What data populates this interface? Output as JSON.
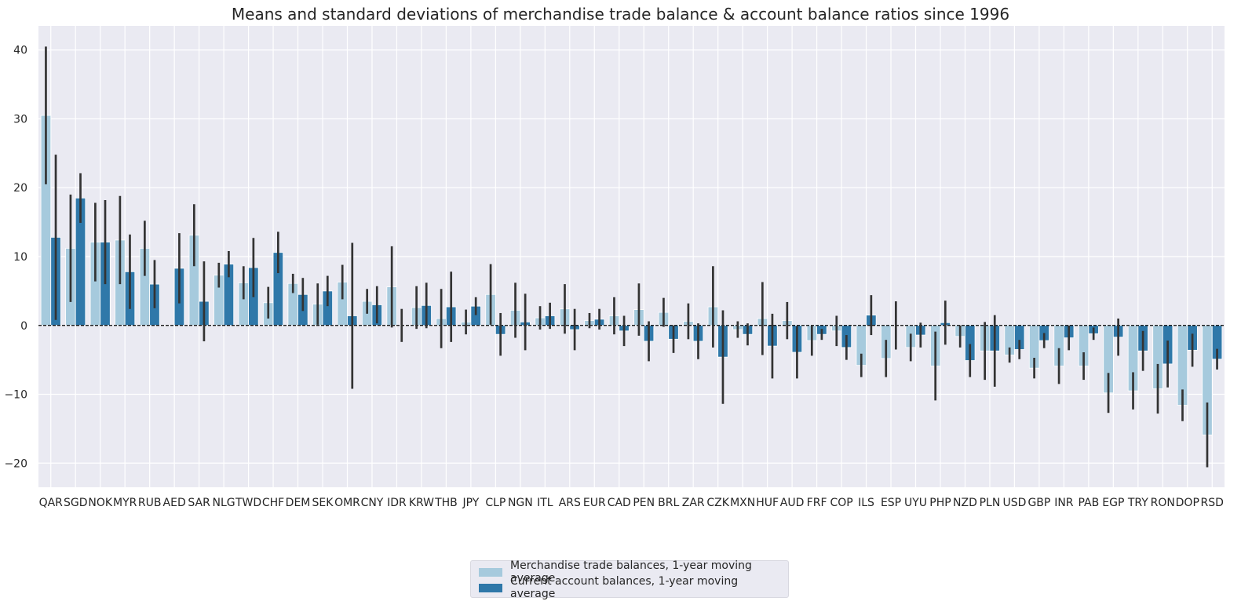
{
  "chart_data": {
    "type": "bar",
    "title": "Means and standard deviations of merchandise trade balance & account balance ratios since 1996",
    "xlabel": "",
    "ylabel": "",
    "ylim": [
      -23.5,
      43.5
    ],
    "yticks": [
      -20,
      -10,
      0,
      10,
      20,
      30,
      40
    ],
    "grid": true,
    "reference_line": 0,
    "legend_position": "bottom-center",
    "colors": {
      "background": "#eaeaf2",
      "grid": "#ffffff",
      "series_1": "#a6cadd",
      "series_2": "#2f78a9",
      "error_bar": "#333333"
    },
    "categories": [
      "QAR",
      "SGD",
      "NOK",
      "MYR",
      "RUB",
      "AED",
      "SAR",
      "NLG",
      "TWD",
      "CHF",
      "DEM",
      "SEK",
      "OMR",
      "CNY",
      "IDR",
      "KRW",
      "THB",
      "JPY",
      "CLP",
      "NGN",
      "ITL",
      "ARS",
      "EUR",
      "CAD",
      "PEN",
      "BRL",
      "ZAR",
      "CZK",
      "MXN",
      "HUF",
      "AUD",
      "FRF",
      "COP",
      "ILS",
      "ESP",
      "UYU",
      "PHP",
      "NZD",
      "PLN",
      "USD",
      "GBP",
      "INR",
      "PAB",
      "EGP",
      "TRY",
      "RON",
      "DOP",
      "RSD"
    ],
    "series": [
      {
        "name": "Merchandise trade balances, 1-year moving average",
        "values": [
          30.5,
          11.2,
          12.1,
          12.4,
          11.2,
          0,
          13.1,
          7.3,
          6.2,
          3.3,
          6.1,
          3.1,
          6.3,
          3.5,
          5.6,
          2.6,
          1.0,
          0.5,
          4.5,
          2.2,
          1.1,
          2.4,
          0.7,
          1.4,
          2.3,
          1.9,
          0.6,
          2.7,
          -0.6,
          1.0,
          0.7,
          -2.2,
          -0.8,
          -5.8,
          -4.8,
          -3.2,
          -5.9,
          -1.6,
          -3.7,
          -4.3,
          -6.2,
          -5.9,
          -5.9,
          -9.8,
          -9.5,
          -9.2,
          -11.6,
          -15.9
        ],
        "errors": [
          10.0,
          7.8,
          5.7,
          6.4,
          4.0,
          0,
          4.5,
          1.8,
          2.4,
          2.3,
          1.4,
          3.0,
          2.5,
          1.8,
          5.9,
          3.1,
          4.3,
          1.8,
          4.4,
          4.0,
          1.7,
          3.6,
          1.1,
          2.7,
          3.8,
          2.1,
          2.6,
          5.9,
          1.2,
          5.3,
          2.7,
          2.2,
          2.2,
          1.7,
          2.7,
          2.0,
          5.0,
          1.6,
          4.2,
          1.1,
          1.5,
          2.6,
          2.0,
          2.9,
          2.7,
          3.6,
          2.3,
          4.7
        ]
      },
      {
        "name": "Current account balances, 1-year moving average",
        "values": [
          12.8,
          18.5,
          12.1,
          7.8,
          6.0,
          8.3,
          3.5,
          8.9,
          8.4,
          10.6,
          4.5,
          5.0,
          1.4,
          3.0,
          0,
          2.9,
          2.7,
          2.8,
          -1.3,
          0.5,
          1.4,
          -0.6,
          0.9,
          -0.8,
          -2.3,
          -2.0,
          -2.3,
          -4.6,
          -1.3,
          -3.0,
          -3.9,
          -1.3,
          -3.2,
          1.5,
          0,
          -1.4,
          0.4,
          -5.1,
          -3.7,
          -3.5,
          -2.2,
          -1.8,
          -1.2,
          -1.7,
          -3.7,
          -5.6,
          -3.6,
          -4.9
        ],
        "errors": [
          12.0,
          3.6,
          6.1,
          5.4,
          3.5,
          5.1,
          5.8,
          1.9,
          4.3,
          3.0,
          2.4,
          2.2,
          10.6,
          2.7,
          2.4,
          3.3,
          5.1,
          1.3,
          3.1,
          4.1,
          1.9,
          3.0,
          1.5,
          2.2,
          2.9,
          2.0,
          2.6,
          6.8,
          1.6,
          4.7,
          3.8,
          0.8,
          1.8,
          2.9,
          3.5,
          1.8,
          3.2,
          2.4,
          5.2,
          1.4,
          1.1,
          1.8,
          0.9,
          2.7,
          2.9,
          3.4,
          2.4,
          1.5
        ]
      }
    ]
  }
}
